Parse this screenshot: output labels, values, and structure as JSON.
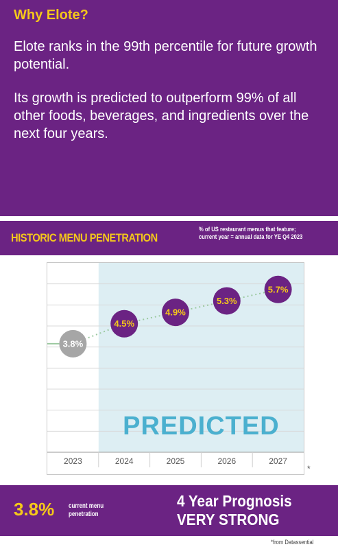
{
  "header": {
    "title": "Why Elote?",
    "para1": "Elote ranks in the 99th percentile for future growth potential.",
    "para2": "Its growth is predicted to outperform 99% of all other foods, beverages, and ingredients over the next four years."
  },
  "band": {
    "title": "HISTORIC MENU PENETRATION",
    "note": "% of US restaurant menus that feature; current year = annual data for YE Q4 2023"
  },
  "chart_data": {
    "type": "line",
    "x": [
      "2023",
      "2024",
      "2025",
      "2026",
      "2027"
    ],
    "series": [
      {
        "values": [
          3.8,
          4.5,
          4.9,
          5.3,
          5.7
        ]
      }
    ],
    "point_labels": [
      "3.8%",
      "4.5%",
      "4.9%",
      "5.3%",
      "5.7%"
    ],
    "annotation": "PREDICTED",
    "ylim": [
      0,
      6.2
    ],
    "grid": true,
    "colors": {
      "historic_point": "#a6a6a6",
      "predicted_point": "#6b2383",
      "label_text": "#f5c81a",
      "predicted_shade": "#ddeef3",
      "annotation_text": "#4bb0cf",
      "line": "#9cc9a0"
    }
  },
  "asterisk": "*",
  "bottom": {
    "current_value": "3.8%",
    "current_label": "current menu penetration",
    "prognosis_title": "4 Year Prognosis",
    "prognosis_value": "VERY STRONG"
  },
  "footnote": "*from Datassential",
  "colors": {
    "brand_purple": "#6b2383",
    "accent_yellow": "#f5c81a"
  }
}
